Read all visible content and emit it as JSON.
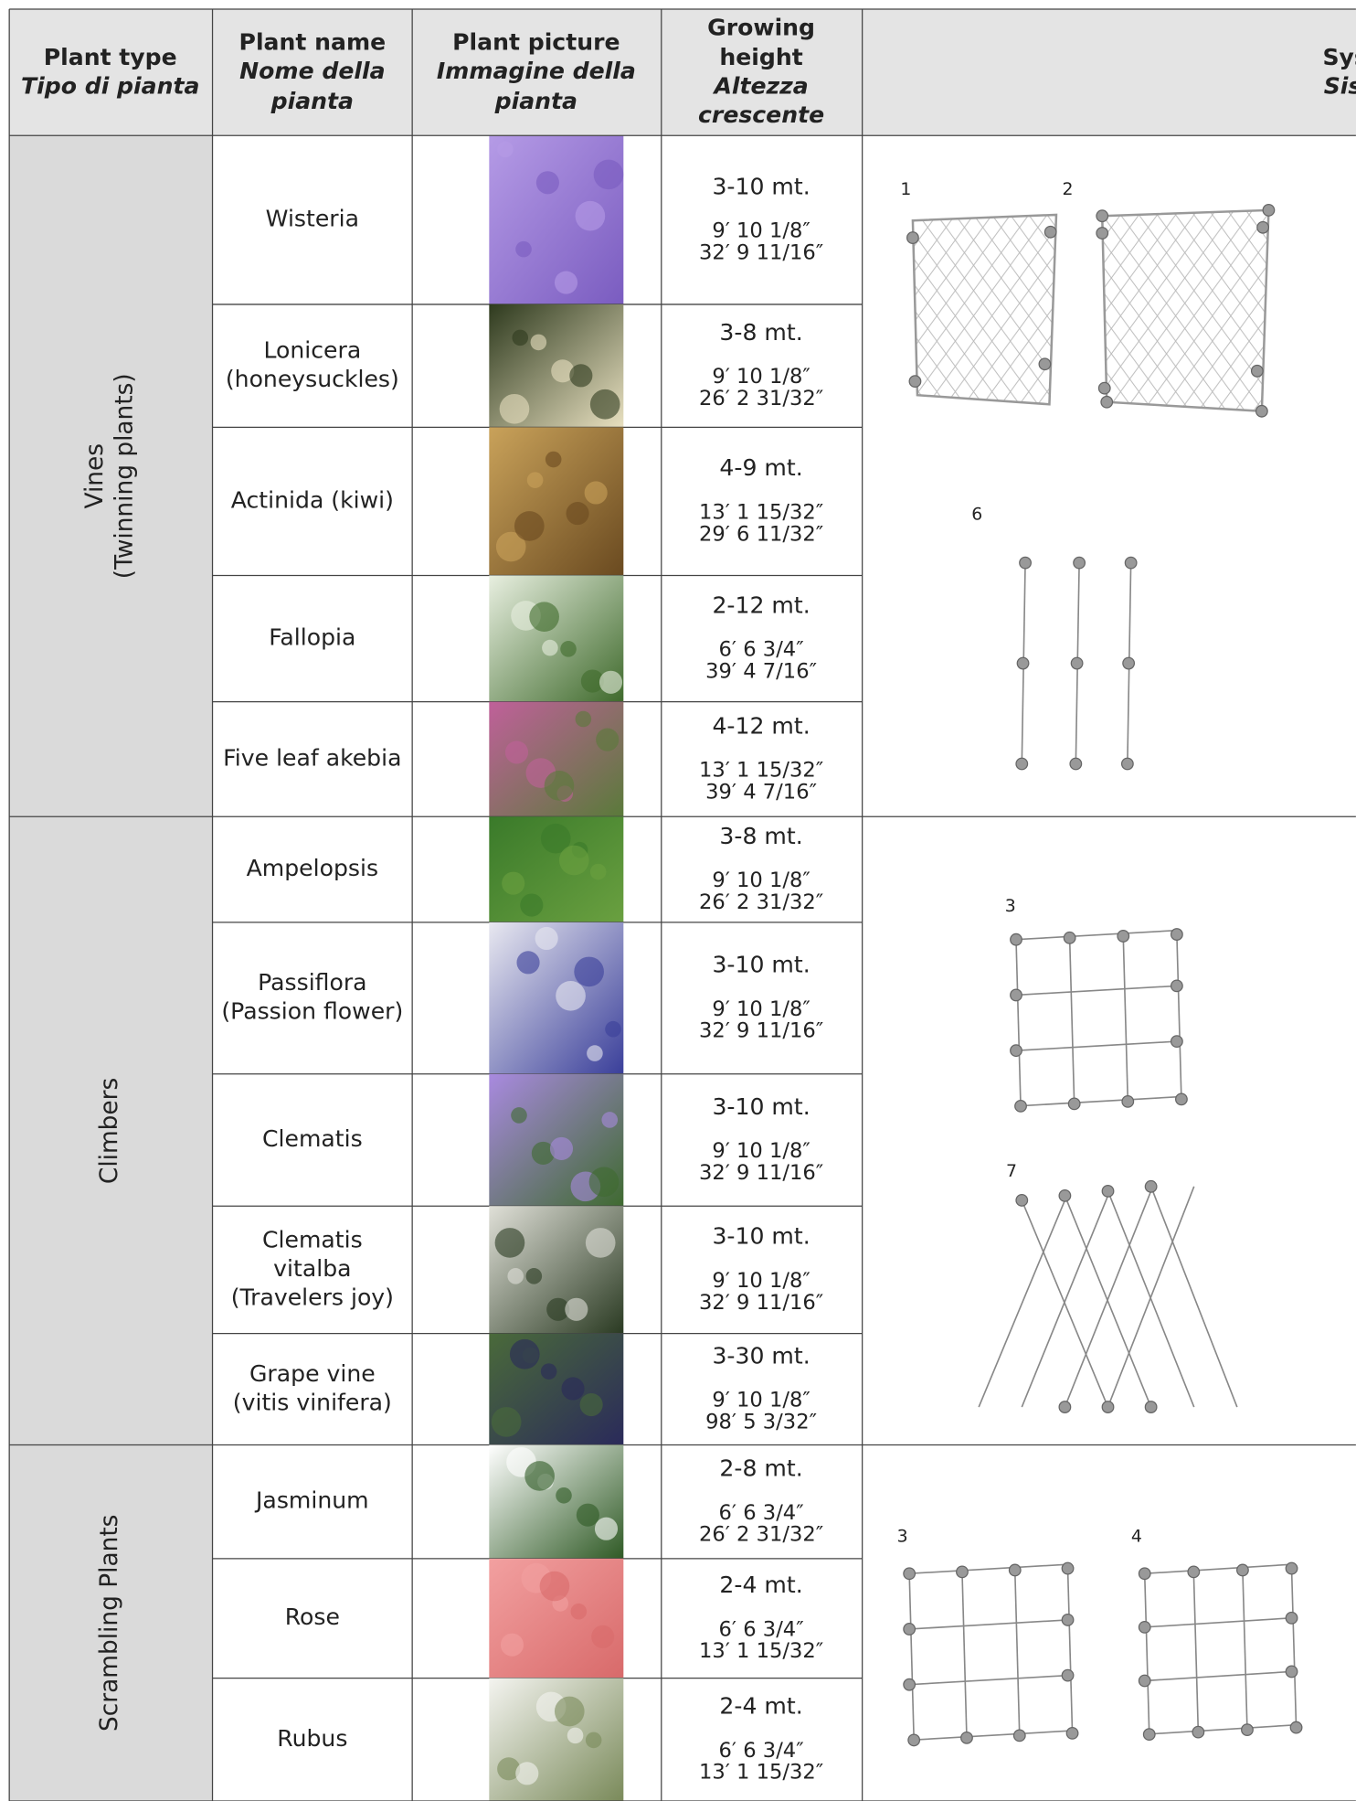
{
  "header": {
    "plant_type": {
      "en": [
        "Plant type"
      ],
      "it": [
        "Tipo di pianta"
      ]
    },
    "plant_name": {
      "en": [
        "Plant name"
      ],
      "it": [
        "Nome della",
        "pianta"
      ]
    },
    "plant_picture": {
      "en": [
        "Plant picture"
      ],
      "it": [
        "Immagine della",
        "pianta"
      ]
    },
    "growing_height": {
      "en": [
        "Growing",
        "height"
      ],
      "it": [
        "Altezza",
        "crescente"
      ]
    },
    "system": {
      "en": [
        "Sys"
      ],
      "it": [
        "Sis"
      ]
    }
  },
  "groups": [
    {
      "label": [
        "Vines",
        "(Twinning plants)"
      ],
      "systems": [
        "1",
        "2",
        "6"
      ],
      "plants": [
        {
          "name": [
            "Wisteria"
          ],
          "height": [
            "3-10 mt.",
            "9′ 10 1/8″",
            "32′ 9 11/16″"
          ]
        },
        {
          "name": [
            "Lonicera",
            "(honeysuckles)"
          ],
          "height": [
            "3-8 mt.",
            "9′ 10 1/8″",
            "26′ 2 31/32″"
          ]
        },
        {
          "name": [
            "Actinida (kiwi)"
          ],
          "height": [
            "4-9 mt.",
            "13′ 1 15/32″",
            "29′ 6 11/32″"
          ]
        },
        {
          "name": [
            "Fallopia"
          ],
          "height": [
            "2-12 mt.",
            "6′ 6 3/4″",
            "39′ 4 7/16″"
          ]
        },
        {
          "name": [
            "Five leaf akebia"
          ],
          "height": [
            "4-12 mt.",
            "13′ 1 15/32″",
            "39′ 4 7/16″"
          ]
        }
      ]
    },
    {
      "label": [
        "Climbers"
      ],
      "systems": [
        "3",
        "7"
      ],
      "plants": [
        {
          "name": [
            "Ampelopsis"
          ],
          "height": [
            "3-8 mt.",
            "9′ 10 1/8″",
            "26′ 2 31/32″"
          ]
        },
        {
          "name": [
            "Passiflora",
            "(Passion flower)"
          ],
          "height": [
            "3-10 mt.",
            "9′ 10 1/8″",
            "32′ 9 11/16″"
          ]
        },
        {
          "name": [
            "Clematis"
          ],
          "height": [
            "3-10 mt.",
            "9′ 10 1/8″",
            "32′ 9 11/16″"
          ]
        },
        {
          "name": [
            "Clematis",
            "vitalba",
            "(Travelers joy)"
          ],
          "height": [
            "3-10 mt.",
            "9′ 10 1/8″",
            "32′ 9 11/16″"
          ]
        },
        {
          "name": [
            "Grape vine",
            "(vitis vinifera)"
          ],
          "height": [
            "3-30 mt.",
            "9′ 10 1/8″",
            "98′ 5 3/32″"
          ]
        }
      ]
    },
    {
      "label": [
        "Scrambling Plants"
      ],
      "systems": [
        "3",
        "4"
      ],
      "plants": [
        {
          "name": [
            "Jasminum"
          ],
          "height": [
            "2-8 mt.",
            "6′ 6 3/4″",
            "26′ 2 31/32″"
          ]
        },
        {
          "name": [
            "Rose"
          ],
          "height": [
            "2-4 mt.",
            "6′ 6 3/4″",
            "13′ 1 15/32″"
          ]
        },
        {
          "name": [
            "Rubus"
          ],
          "height": [
            "2-4 mt.",
            "6′ 6 3/4″",
            "13′ 1 15/32″"
          ]
        }
      ]
    }
  ]
}
